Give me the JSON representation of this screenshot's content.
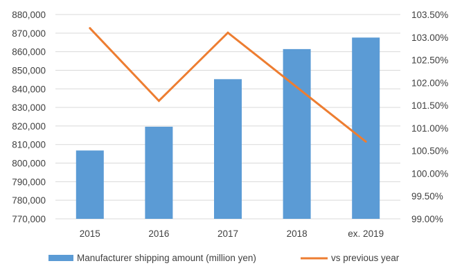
{
  "chart_data": {
    "type": "bar",
    "categories": [
      "2015",
      "2016",
      "2017",
      "2018",
      "ex. 2019"
    ],
    "series": [
      {
        "name": "Manufacturer shipping amount (million yen)",
        "type": "bar",
        "axis": "left",
        "color": "#5b9bd5",
        "values": [
          806800,
          819600,
          845200,
          861400,
          867600
        ]
      },
      {
        "name": "vs previous year",
        "type": "line",
        "axis": "right",
        "color": "#ed7d31",
        "values": [
          103.2,
          101.6,
          103.1,
          101.9,
          100.7
        ]
      }
    ],
    "y_left": {
      "ylim": [
        770000,
        880000
      ],
      "ticks": [
        770000,
        780000,
        790000,
        800000,
        810000,
        820000,
        830000,
        840000,
        850000,
        860000,
        870000,
        880000
      ],
      "tick_labels": [
        "770,000",
        "780,000",
        "790,000",
        "800,000",
        "810,000",
        "820,000",
        "830,000",
        "840,000",
        "850,000",
        "860,000",
        "870,000",
        "880,000"
      ]
    },
    "y_right": {
      "ylim": [
        99.0,
        103.5
      ],
      "ticks": [
        99.0,
        99.5,
        100.0,
        100.5,
        101.0,
        101.5,
        102.0,
        102.5,
        103.0,
        103.5
      ],
      "tick_labels": [
        "99.00%",
        "99.50%",
        "100.00%",
        "100.50%",
        "101.00%",
        "101.50%",
        "102.00%",
        "102.50%",
        "103.00%",
        "103.50%"
      ]
    },
    "grid": true,
    "legend": "bottom"
  }
}
